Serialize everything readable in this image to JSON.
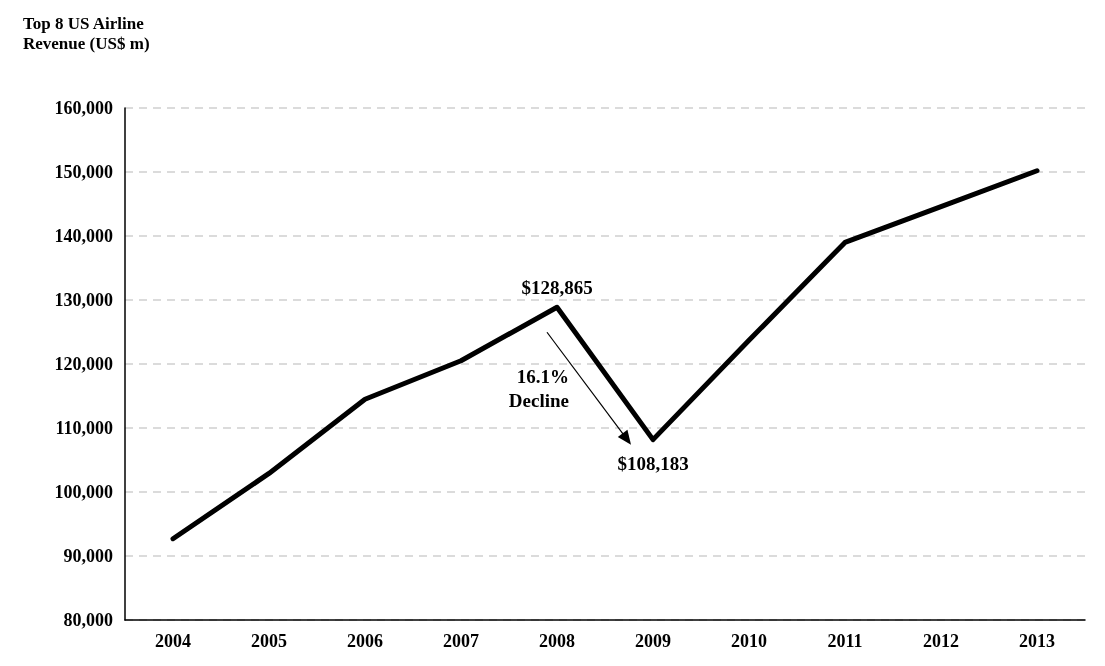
{
  "chart_data": {
    "type": "line",
    "title": "Top 8 US Airline Revenue (US$ m)",
    "categories": [
      "2004",
      "2005",
      "2006",
      "2007",
      "2008",
      "2009",
      "2010",
      "2011",
      "2012",
      "2013"
    ],
    "series": [
      {
        "color": "#000000",
        "values": [
          92700,
          102900,
          114500,
          120500,
          128865,
          108183,
          123700,
          139000,
          144600,
          150200
        ]
      }
    ],
    "ylim": [
      80000,
      160000
    ],
    "yticks": [
      {
        "value": 80000,
        "label": "80,000"
      },
      {
        "value": 90000,
        "label": "90,000"
      },
      {
        "value": 100000,
        "label": "100,000"
      },
      {
        "value": 110000,
        "label": "110,000"
      },
      {
        "value": 120000,
        "label": "120,000"
      },
      {
        "value": 130000,
        "label": "130,000"
      },
      {
        "value": 140000,
        "label": "140,000"
      },
      {
        "value": 150000,
        "label": "150,000"
      },
      {
        "value": 160000,
        "label": "160,000"
      }
    ],
    "grid": "y",
    "marker": "none",
    "line_style": "solid",
    "annotations": [
      {
        "text": "$128,865",
        "x": "2008",
        "y": 128865
      },
      {
        "text": "$108,183",
        "x": "2009",
        "y": 108183
      },
      "16.1%\nDecline"
    ]
  }
}
